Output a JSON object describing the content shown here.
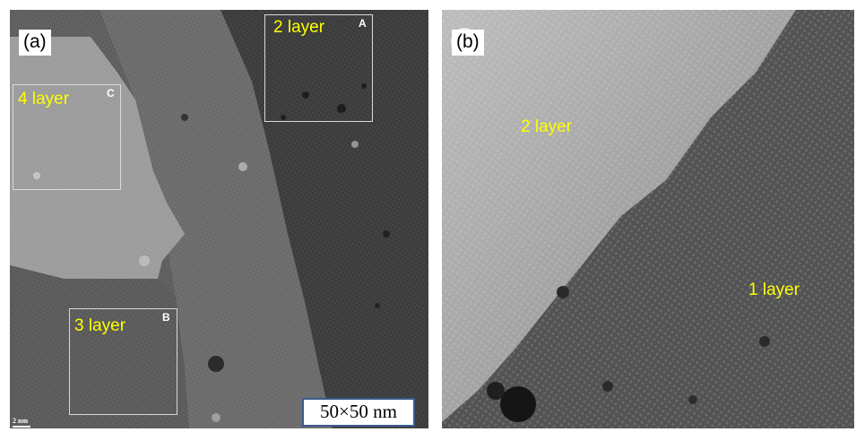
{
  "panel_a": {
    "label": "(a)",
    "regions": {
      "a": "2 layer",
      "b": "3 layer",
      "c": "4 layer"
    },
    "roi_letters": {
      "a": "A",
      "b": "B",
      "c": "C"
    },
    "scale_box": "50×50 nm",
    "scale_bar": "2 nm"
  },
  "panel_b": {
    "label": "(b)",
    "regions": {
      "upper": "2 layer",
      "lower": "1 layer"
    }
  },
  "colors": {
    "label_text": "#ffff00",
    "roi_border": "#d9d9d9",
    "scale_box_border": "#3b5c8c"
  }
}
